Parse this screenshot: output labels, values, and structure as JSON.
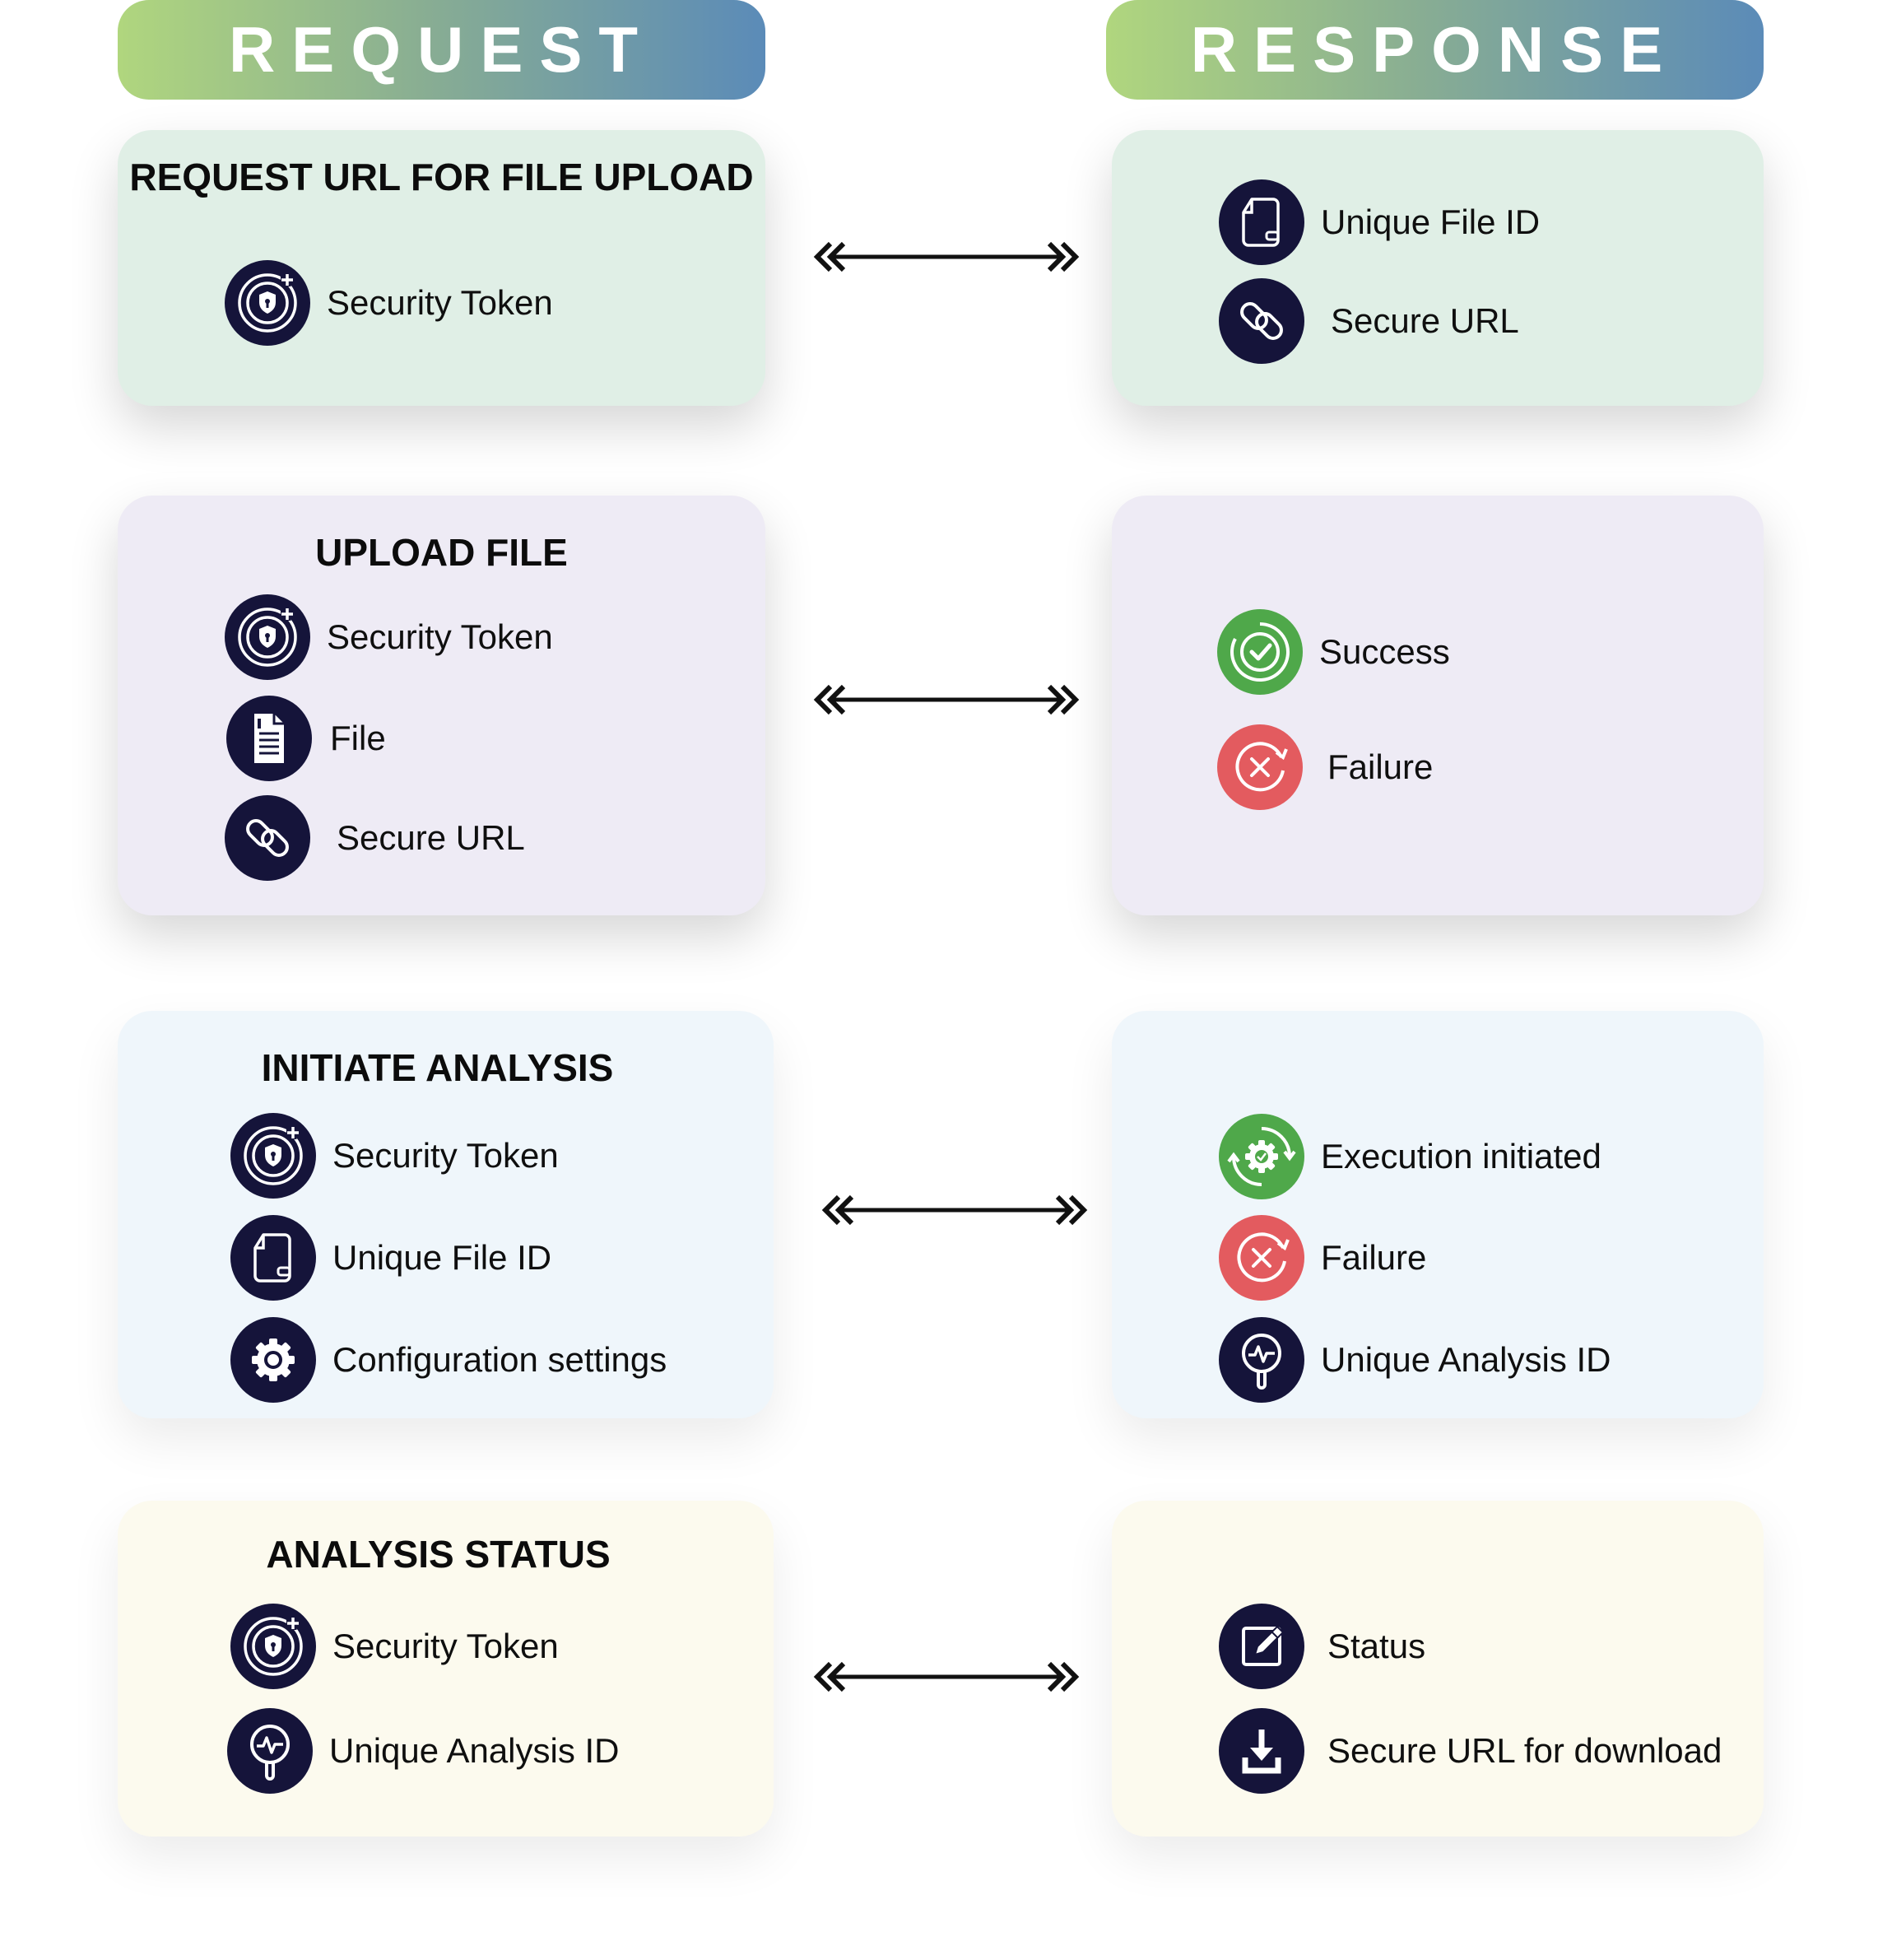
{
  "headers": {
    "request": "REQUEST",
    "response": "RESPONSE"
  },
  "rows": [
    {
      "request": {
        "title": "REQUEST URL FOR FILE UPLOAD",
        "items": [
          {
            "icon": "security-token-icon",
            "label": "Security Token"
          }
        ]
      },
      "response": {
        "items": [
          {
            "icon": "file-id-icon",
            "label": "Unique File ID"
          },
          {
            "icon": "link-icon",
            "label": "Secure URL"
          }
        ]
      }
    },
    {
      "request": {
        "title": "UPLOAD FILE",
        "items": [
          {
            "icon": "security-token-icon",
            "label": "Security Token"
          },
          {
            "icon": "document-icon",
            "label": "File"
          },
          {
            "icon": "link-icon",
            "label": "Secure URL"
          }
        ]
      },
      "response": {
        "items": [
          {
            "icon": "success-check-icon",
            "label": "Success"
          },
          {
            "icon": "failure-x-icon",
            "label": "Failure"
          }
        ]
      }
    },
    {
      "request": {
        "title": "INITIATE ANALYSIS",
        "items": [
          {
            "icon": "security-token-icon",
            "label": "Security Token"
          },
          {
            "icon": "file-id-icon",
            "label": "Unique File ID"
          },
          {
            "icon": "gear-icon",
            "label": "Configuration settings"
          }
        ]
      },
      "response": {
        "items": [
          {
            "icon": "execution-gear-icon",
            "label": "Execution initiated"
          },
          {
            "icon": "failure-x-icon",
            "label": "Failure"
          },
          {
            "icon": "analysis-id-icon",
            "label": "Unique Analysis ID"
          }
        ]
      }
    },
    {
      "request": {
        "title": "ANALYSIS STATUS",
        "items": [
          {
            "icon": "security-token-icon",
            "label": "Security Token"
          },
          {
            "icon": "analysis-id-icon",
            "label": "Unique Analysis ID"
          }
        ]
      },
      "response": {
        "items": [
          {
            "icon": "edit-pencil-icon",
            "label": "Status"
          },
          {
            "icon": "download-icon",
            "label": "Secure URL for download"
          }
        ]
      }
    }
  ],
  "colors": {
    "header_gradient": [
      "#b0d67e",
      "#88ad93",
      "#5b8bb8"
    ],
    "icon_dark": "#15143a",
    "success_green": "#4fa84a",
    "failure_red": "#e35b5f"
  }
}
